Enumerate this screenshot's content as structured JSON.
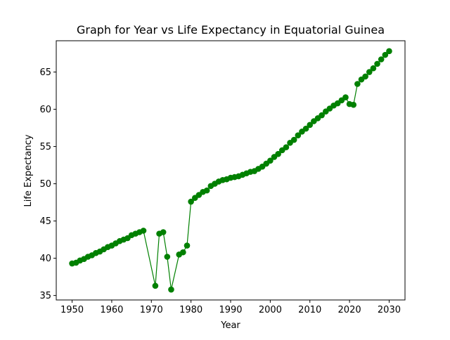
{
  "chart_data": {
    "type": "line",
    "title": "Graph for Year vs Life Expectancy in Equatorial Guinea",
    "xlabel": "Year",
    "ylabel": "Life Expectancy",
    "xlim": [
      1946,
      2034
    ],
    "ylim": [
      34.4,
      69.2
    ],
    "x_ticks": [
      1950,
      1960,
      1970,
      1980,
      1990,
      2000,
      2010,
      2020,
      2030
    ],
    "y_ticks": [
      35,
      40,
      45,
      50,
      55,
      60,
      65
    ],
    "grid": false,
    "legend": "none",
    "series": [
      {
        "color": "#008000",
        "marker": "circle",
        "points": [
          [
            1950,
            39.3
          ],
          [
            1951,
            39.4
          ],
          [
            1952,
            39.7
          ],
          [
            1953,
            39.9
          ],
          [
            1954,
            40.2
          ],
          [
            1955,
            40.4
          ],
          [
            1956,
            40.7
          ],
          [
            1957,
            40.9
          ],
          [
            1958,
            41.2
          ],
          [
            1959,
            41.5
          ],
          [
            1960,
            41.7
          ],
          [
            1961,
            42.0
          ],
          [
            1962,
            42.3
          ],
          [
            1963,
            42.5
          ],
          [
            1964,
            42.7
          ],
          [
            1965,
            43.1
          ],
          [
            1966,
            43.3
          ],
          [
            1967,
            43.5
          ],
          [
            1968,
            43.7
          ],
          [
            1971,
            36.3
          ],
          [
            1972,
            43.3
          ],
          [
            1973,
            43.5
          ],
          [
            1974,
            40.2
          ],
          [
            1975,
            35.8
          ],
          [
            1977,
            40.5
          ],
          [
            1978,
            40.8
          ],
          [
            1979,
            41.7
          ],
          [
            1980,
            47.6
          ],
          [
            1981,
            48.1
          ],
          [
            1982,
            48.5
          ],
          [
            1983,
            48.9
          ],
          [
            1984,
            49.1
          ],
          [
            1985,
            49.7
          ],
          [
            1986,
            50.0
          ],
          [
            1987,
            50.3
          ],
          [
            1988,
            50.5
          ],
          [
            1989,
            50.6
          ],
          [
            1990,
            50.8
          ],
          [
            1991,
            50.9
          ],
          [
            1992,
            51.0
          ],
          [
            1993,
            51.2
          ],
          [
            1994,
            51.4
          ],
          [
            1995,
            51.6
          ],
          [
            1996,
            51.7
          ],
          [
            1997,
            52.0
          ],
          [
            1998,
            52.3
          ],
          [
            1999,
            52.7
          ],
          [
            2000,
            53.1
          ],
          [
            2001,
            53.6
          ],
          [
            2002,
            54.0
          ],
          [
            2003,
            54.5
          ],
          [
            2004,
            54.9
          ],
          [
            2005,
            55.5
          ],
          [
            2006,
            55.9
          ],
          [
            2007,
            56.5
          ],
          [
            2008,
            57.0
          ],
          [
            2009,
            57.4
          ],
          [
            2010,
            57.9
          ],
          [
            2011,
            58.4
          ],
          [
            2012,
            58.8
          ],
          [
            2013,
            59.2
          ],
          [
            2014,
            59.7
          ],
          [
            2015,
            60.1
          ],
          [
            2016,
            60.5
          ],
          [
            2017,
            60.8
          ],
          [
            2018,
            61.2
          ],
          [
            2019,
            61.6
          ],
          [
            2020,
            60.7
          ],
          [
            2021,
            60.6
          ],
          [
            2022,
            63.4
          ],
          [
            2023,
            64.0
          ],
          [
            2024,
            64.4
          ],
          [
            2025,
            65.0
          ],
          [
            2026,
            65.5
          ],
          [
            2027,
            66.1
          ],
          [
            2028,
            66.7
          ],
          [
            2029,
            67.3
          ],
          [
            2030,
            67.8
          ]
        ]
      }
    ]
  }
}
